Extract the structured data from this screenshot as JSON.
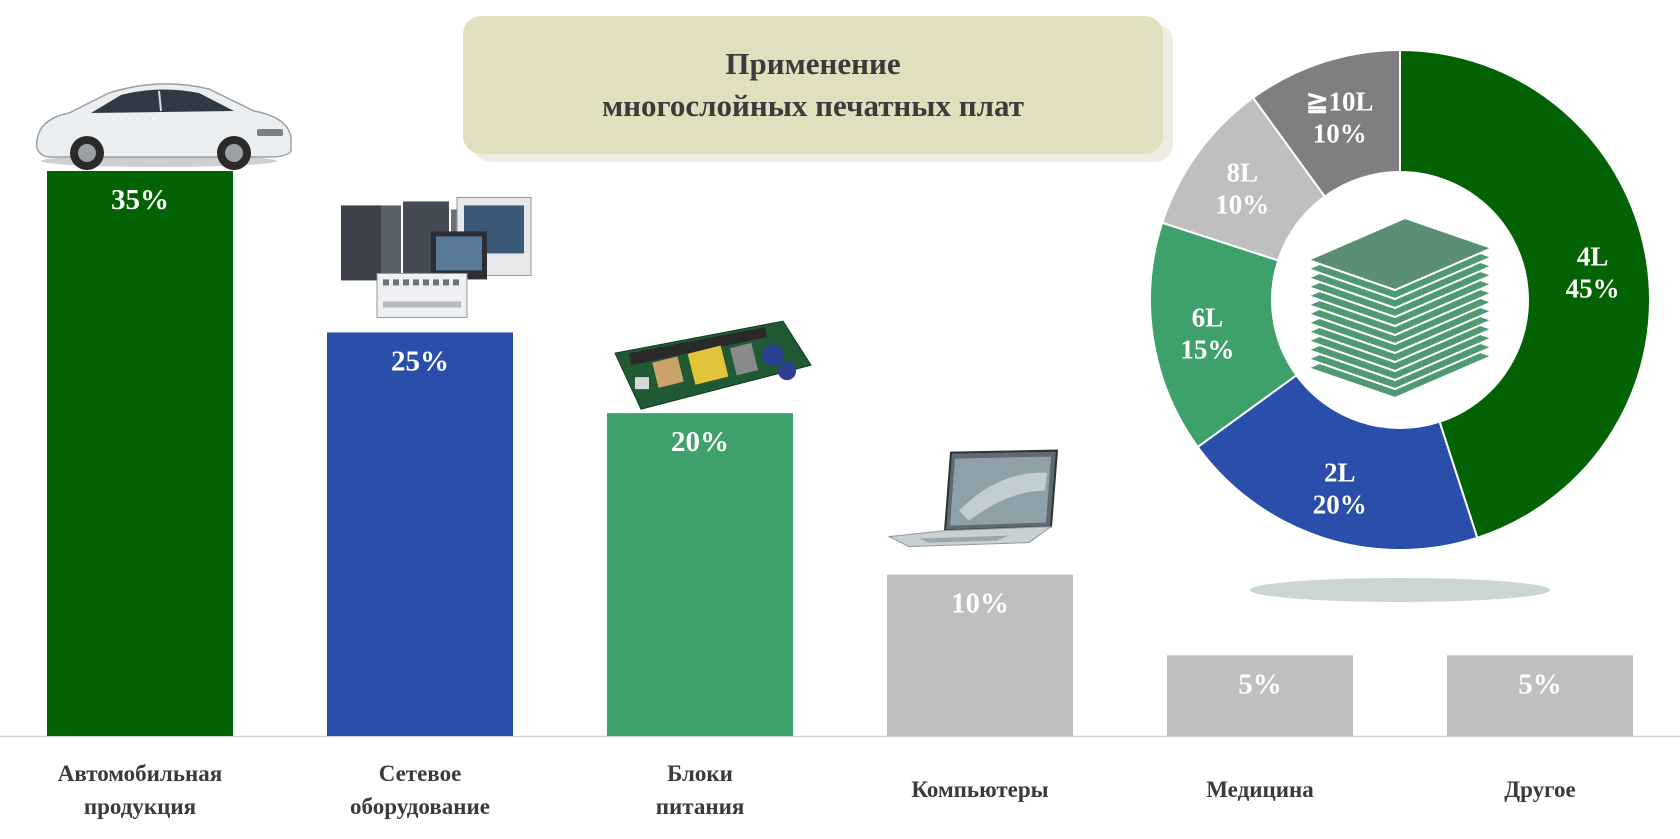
{
  "title": {
    "line1": "Применение",
    "line2": "многослойных печатных плат"
  },
  "chart_data": [
    {
      "type": "bar",
      "categories": [
        [
          "Автомобильная",
          "продукция"
        ],
        [
          "Сетевое",
          "оборудование"
        ],
        [
          "Блоки",
          "питания"
        ],
        [
          "Компьютеры"
        ],
        [
          "Медицина"
        ],
        [
          "Другое"
        ]
      ],
      "values": [
        35,
        25,
        20,
        10,
        5,
        5
      ],
      "value_labels": [
        "35%",
        "25%",
        "20%",
        "10%",
        "5%",
        "5%"
      ],
      "colors": [
        "#036203",
        "#2a4fab",
        "#3ea06a",
        "#bfbfbf",
        "#bfbfbf",
        "#bfbfbf"
      ],
      "ylim": [
        0,
        35
      ],
      "icons": [
        "car-icon",
        "network-equipment-icon",
        "power-supply-board-icon",
        "laptop-icon",
        "",
        ""
      ]
    },
    {
      "type": "pie",
      "style": "donut",
      "slices": [
        {
          "label": "4L",
          "value": 45,
          "value_label": "45%",
          "color": "#036203"
        },
        {
          "label": "2L",
          "value": 20,
          "value_label": "20%",
          "color": "#2a4fab"
        },
        {
          "label": "6L",
          "value": 15,
          "value_label": "15%",
          "color": "#3ea06a"
        },
        {
          "label": "8L",
          "value": 10,
          "value_label": "10%",
          "color": "#bfbfbf"
        },
        {
          "label": "≧10L",
          "value": 10,
          "value_label": "10%",
          "color": "#7f7f7f"
        }
      ],
      "center_icon": "pcb-layers-icon"
    }
  ]
}
